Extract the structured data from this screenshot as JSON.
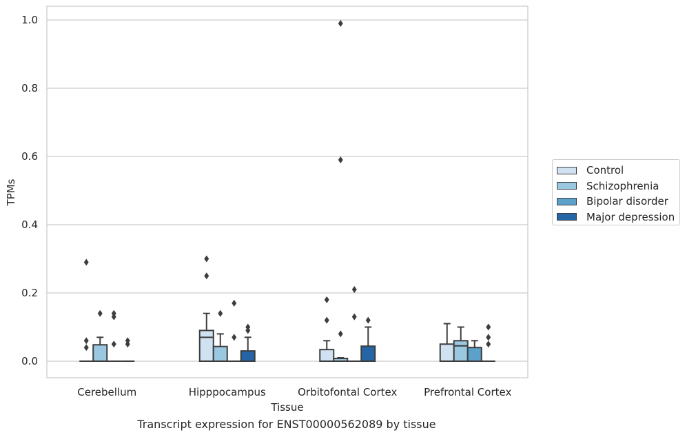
{
  "caption": "Transcript expression for ENST00000562089 by tissue",
  "chart_data": {
    "type": "box",
    "xlabel": "Tissue",
    "ylabel": "TPMs",
    "ylim": [
      -0.048,
      1.04
    ],
    "yticks": [
      "0.0",
      "0.2",
      "0.4",
      "0.6",
      "0.8",
      "1.0"
    ],
    "grid": "horizontal",
    "legend_position": "right",
    "categories": [
      "Cerebellum",
      "Hipppocampus",
      "Orbitofontal Cortex",
      "Prefrontal Cortex"
    ],
    "series": [
      {
        "name": "Control",
        "color": "#d0e1f2",
        "boxes": [
          {
            "q1": 0,
            "median": 0,
            "q3": 0,
            "whislo": 0,
            "whishi": 0,
            "fliers": [
              0.29,
              0.06,
              0.04
            ]
          },
          {
            "q1": 0,
            "median": 0.07,
            "q3": 0.09,
            "whislo": 0,
            "whishi": 0.14,
            "fliers": [
              0.3,
              0.25
            ]
          },
          {
            "q1": 0,
            "median": 0,
            "q3": 0.034,
            "whislo": 0,
            "whishi": 0.06,
            "fliers": [
              0.18,
              0.12
            ]
          },
          {
            "q1": 0,
            "median": 0,
            "q3": 0.05,
            "whislo": 0,
            "whishi": 0.11,
            "fliers": []
          }
        ]
      },
      {
        "name": "Schizophrenia",
        "color": "#9ac8e0",
        "boxes": [
          {
            "q1": 0,
            "median": 0,
            "q3": 0.048,
            "whislo": 0,
            "whishi": 0.07,
            "fliers": [
              0.14
            ]
          },
          {
            "q1": 0,
            "median": 0,
            "q3": 0.043,
            "whislo": 0,
            "whishi": 0.08,
            "fliers": [
              0.14
            ]
          },
          {
            "q1": 0,
            "median": 0,
            "q3": 0.008,
            "whislo": 0,
            "whishi": 0.01,
            "fliers": [
              0.99,
              0.59,
              0.08
            ]
          },
          {
            "q1": 0,
            "median": 0.045,
            "q3": 0.06,
            "whislo": 0,
            "whishi": 0.1,
            "fliers": []
          }
        ]
      },
      {
        "name": "Bipolar disorder",
        "color": "#5ca0cc",
        "boxes": [
          {
            "q1": 0,
            "median": 0,
            "q3": 0,
            "whislo": 0,
            "whishi": 0,
            "fliers": [
              0.14,
              0.13,
              0.05
            ]
          },
          {
            "q1": 0,
            "median": 0,
            "q3": 0,
            "whislo": 0,
            "whishi": 0,
            "fliers": [
              0.17,
              0.07
            ]
          },
          {
            "q1": 0,
            "median": 0,
            "q3": 0,
            "whislo": 0,
            "whishi": 0,
            "fliers": [
              0.21,
              0.13
            ]
          },
          {
            "q1": 0,
            "median": 0,
            "q3": 0.04,
            "whislo": 0,
            "whishi": 0.06,
            "fliers": []
          }
        ]
      },
      {
        "name": "Major depression",
        "color": "#2565a6",
        "boxes": [
          {
            "q1": 0,
            "median": 0,
            "q3": 0,
            "whislo": 0,
            "whishi": 0,
            "fliers": [
              0.06,
              0.05
            ]
          },
          {
            "q1": 0,
            "median": 0,
            "q3": 0.03,
            "whislo": 0,
            "whishi": 0.07,
            "fliers": [
              0.1,
              0.09
            ]
          },
          {
            "q1": 0,
            "median": 0,
            "q3": 0.044,
            "whislo": 0,
            "whishi": 0.1,
            "fliers": [
              0.12
            ]
          },
          {
            "q1": 0,
            "median": 0,
            "q3": 0,
            "whislo": 0,
            "whishi": 0,
            "fliers": [
              0.1,
              0.07,
              0.05
            ]
          }
        ]
      }
    ]
  }
}
